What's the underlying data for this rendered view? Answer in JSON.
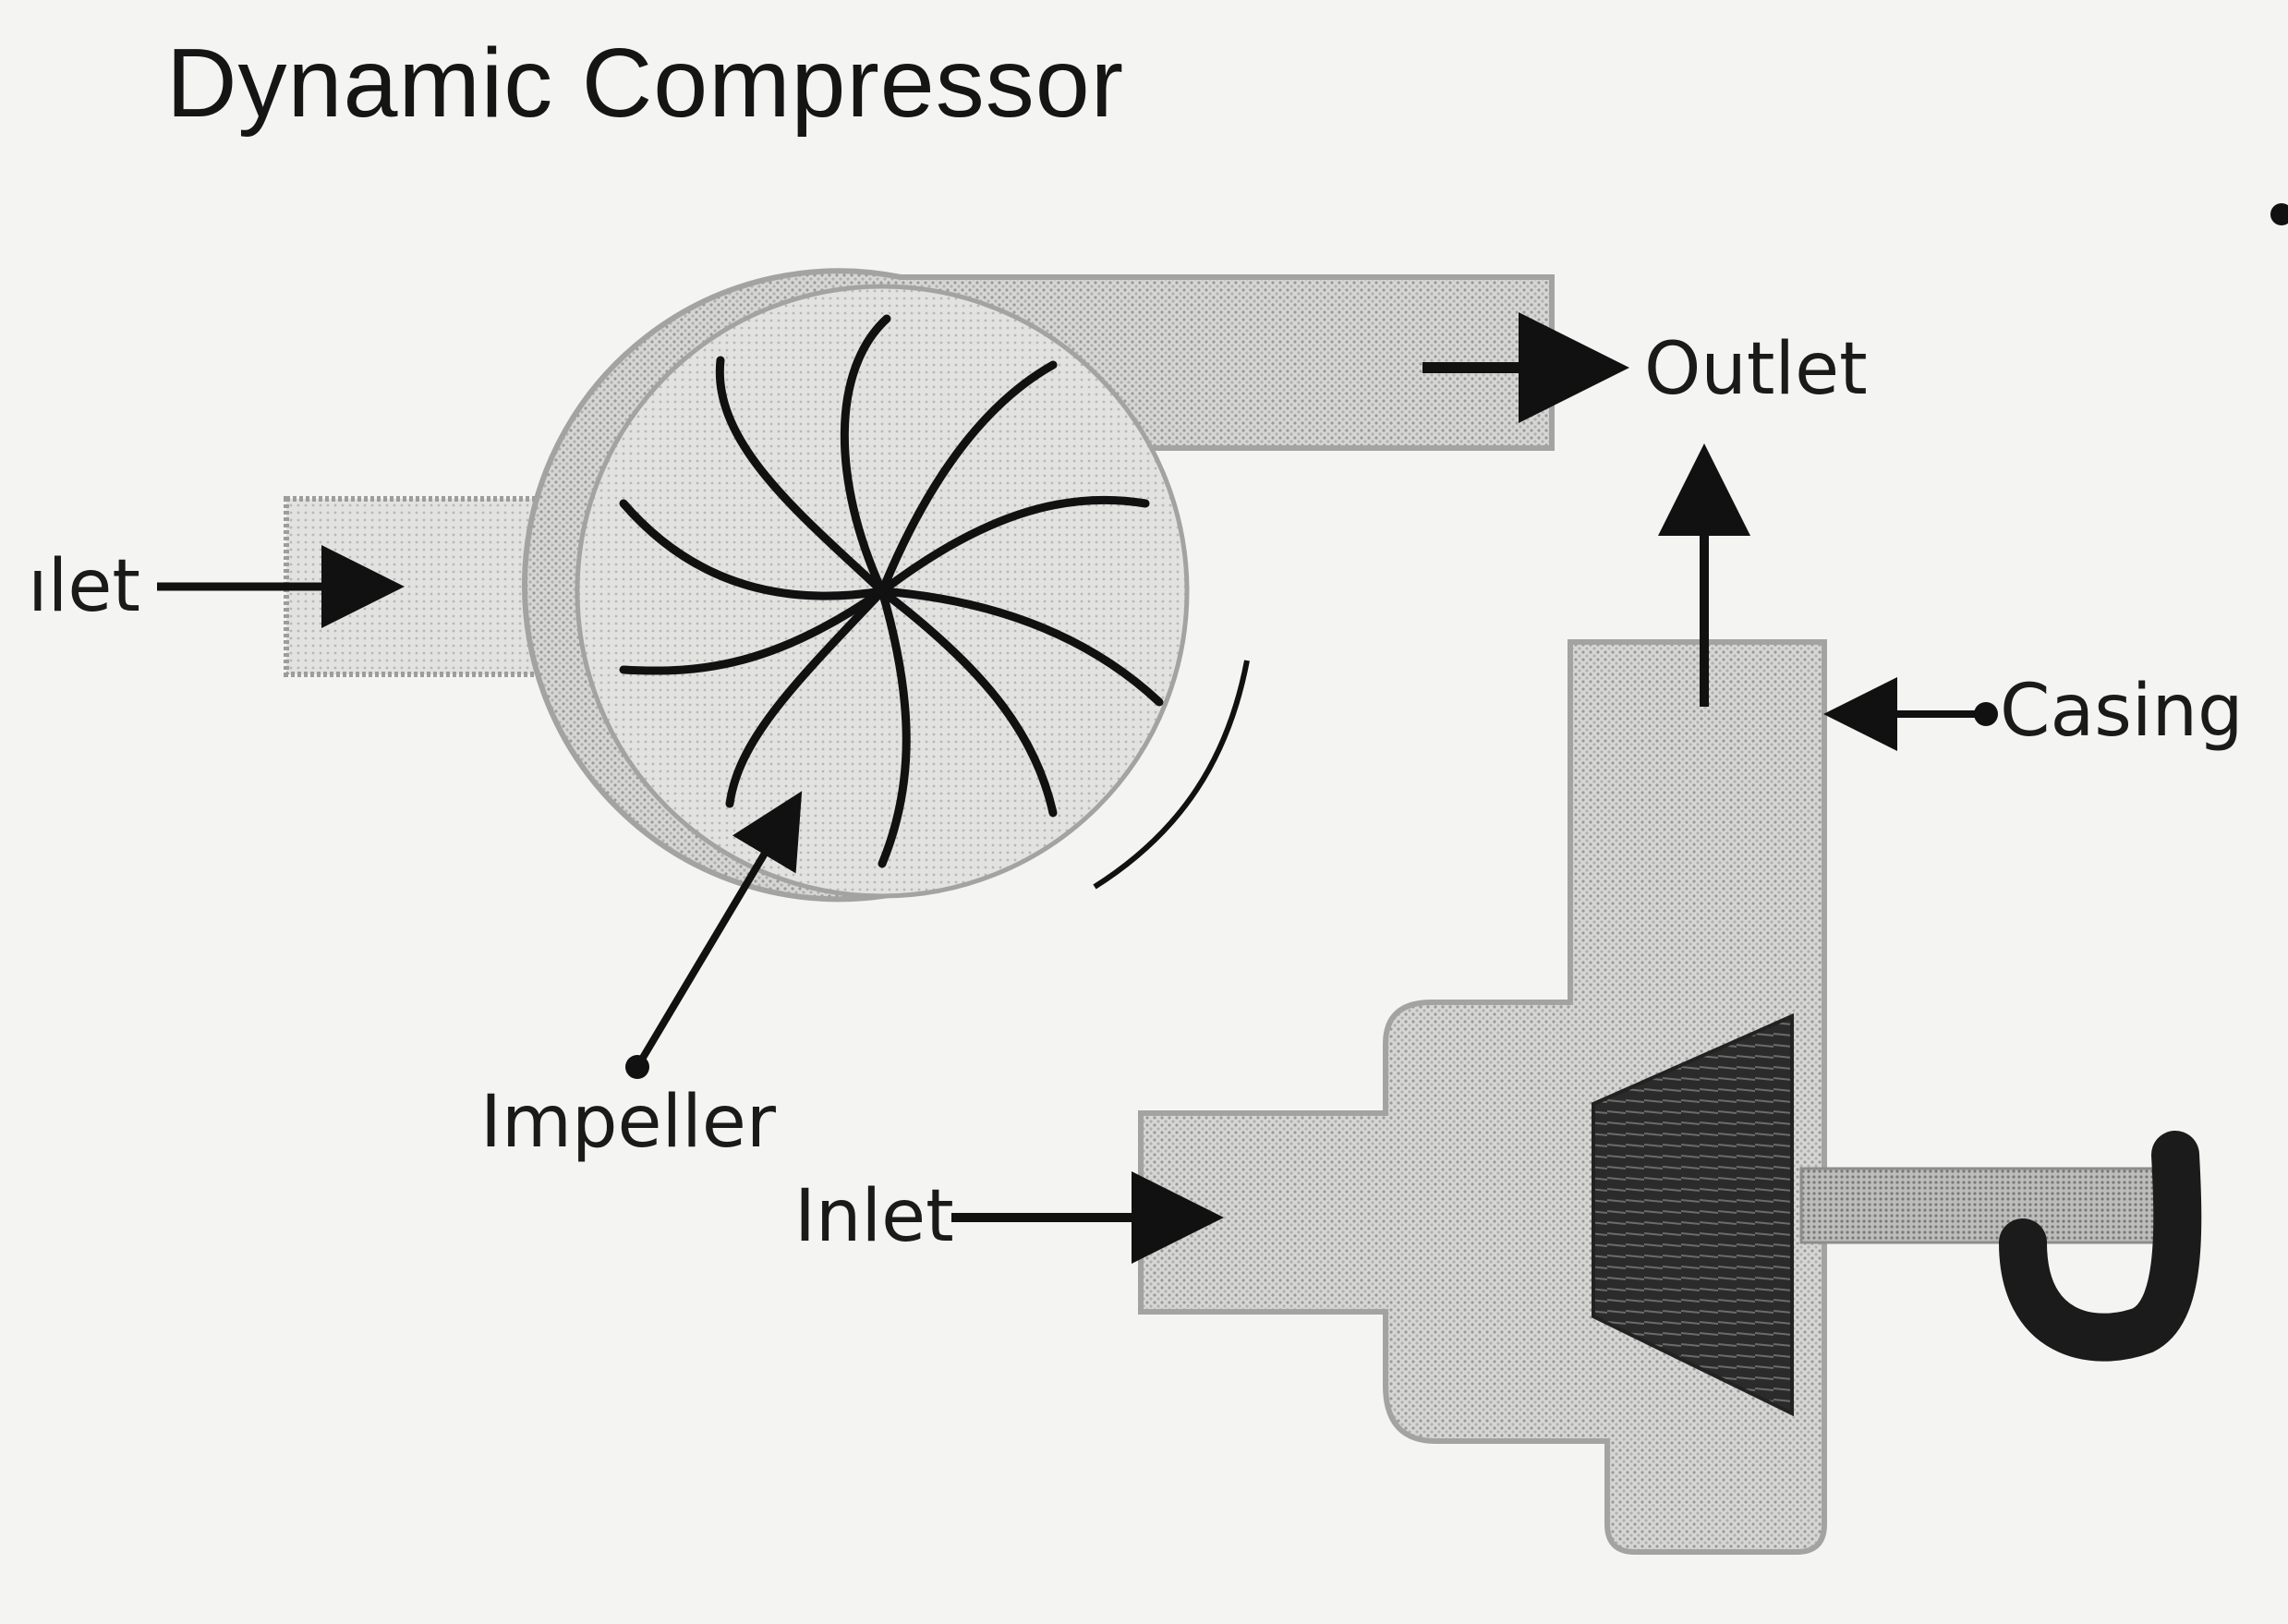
{
  "title": "Dynamic Compressor",
  "labels": {
    "inlet_left": "ılet",
    "outlet": "Outlet",
    "casing": "Casing",
    "impeller": "Impeller",
    "inlet_right": "Inlet"
  },
  "colors": {
    "background": "#f4f4f2",
    "housing": "#d2d2d0",
    "housing_edge": "#a9a9a7",
    "ink": "#111111"
  }
}
